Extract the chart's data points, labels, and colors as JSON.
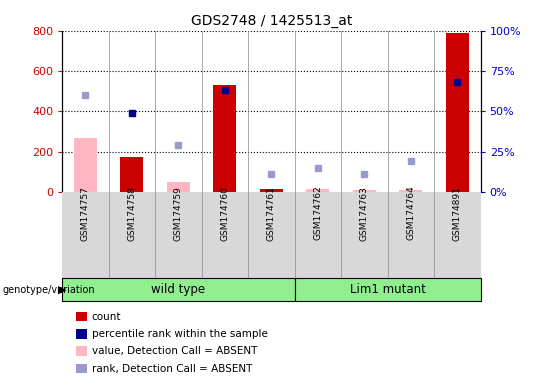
{
  "title": "GDS2748 / 1425513_at",
  "samples": [
    "GSM174757",
    "GSM174758",
    "GSM174759",
    "GSM174760",
    "GSM174761",
    "GSM174762",
    "GSM174763",
    "GSM174764",
    "GSM174891"
  ],
  "count_present": [
    0,
    175,
    0,
    530,
    15,
    0,
    0,
    0,
    790
  ],
  "count_absent": [
    270,
    0,
    50,
    0,
    0,
    15,
    10,
    10,
    0
  ],
  "rank_present_pct": [
    0,
    49,
    0,
    63,
    0,
    0,
    0,
    0,
    68
  ],
  "rank_absent_pct": [
    60,
    0,
    29,
    0,
    11,
    15,
    11,
    19,
    0
  ],
  "wild_type_count": 5,
  "lim1_mutant_count": 4,
  "ylim_left": [
    0,
    800
  ],
  "ylim_right": [
    0,
    100
  ],
  "yticks_left": [
    0,
    200,
    400,
    600,
    800
  ],
  "yticks_right": [
    0,
    25,
    50,
    75,
    100
  ],
  "left_tick_labels": [
    "0",
    "200",
    "400",
    "600",
    "800"
  ],
  "right_tick_labels": [
    "0%",
    "25%",
    "50%",
    "75%",
    "100%"
  ],
  "ylabel_left_color": "#CC0000",
  "ylabel_right_color": "#0000CC",
  "color_count_present": "#CC0000",
  "color_count_absent": "#FFB6C1",
  "color_rank_present": "#00008B",
  "color_rank_absent": "#9999CC",
  "bg_color": "#ffffff",
  "plot_bg": "#ffffff",
  "col_bg": "#d8d8d8",
  "green_color": "#90EE90",
  "legend_items": [
    {
      "label": "count",
      "color": "#CC0000"
    },
    {
      "label": "percentile rank within the sample",
      "color": "#00008B"
    },
    {
      "label": "value, Detection Call = ABSENT",
      "color": "#FFB6C1"
    },
    {
      "label": "rank, Detection Call = ABSENT",
      "color": "#9999CC"
    }
  ]
}
